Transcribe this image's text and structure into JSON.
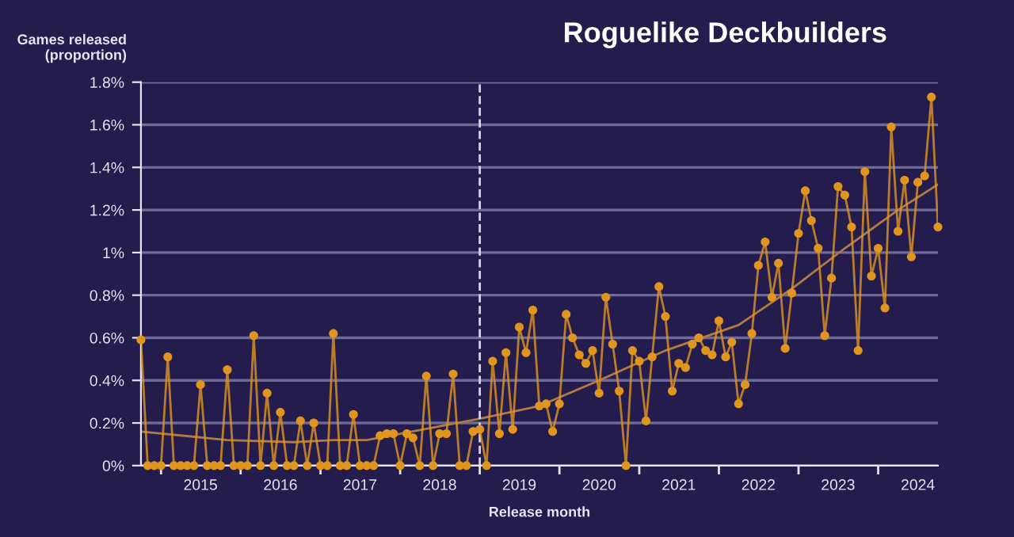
{
  "chart_data": {
    "type": "line",
    "title": "Roguelike Deckbuilders",
    "ylabel": "Games released\n(proportion)",
    "xlabel": "Release month",
    "x": [
      "2014-10",
      "2014-11",
      "2014-12",
      "2015-01",
      "2015-02",
      "2015-03",
      "2015-04",
      "2015-05",
      "2015-06",
      "2015-07",
      "2015-08",
      "2015-09",
      "2015-10",
      "2015-11",
      "2015-12",
      "2016-01",
      "2016-02",
      "2016-03",
      "2016-04",
      "2016-05",
      "2016-06",
      "2016-07",
      "2016-08",
      "2016-09",
      "2016-10",
      "2016-11",
      "2016-12",
      "2017-01",
      "2017-02",
      "2017-03",
      "2017-04",
      "2017-05",
      "2017-06",
      "2017-07",
      "2017-08",
      "2017-09",
      "2017-10",
      "2017-11",
      "2017-12",
      "2018-01",
      "2018-02",
      "2018-03",
      "2018-04",
      "2018-05",
      "2018-06",
      "2018-07",
      "2018-08",
      "2018-09",
      "2018-10",
      "2018-11",
      "2018-12",
      "2019-01",
      "2019-02",
      "2019-03",
      "2019-04",
      "2019-05",
      "2019-06",
      "2019-07",
      "2019-08",
      "2019-09",
      "2019-10",
      "2019-11",
      "2019-12",
      "2020-01",
      "2020-02",
      "2020-03",
      "2020-04",
      "2020-05",
      "2020-06",
      "2020-07",
      "2020-08",
      "2020-09",
      "2020-10",
      "2020-11",
      "2020-12",
      "2021-01",
      "2021-02",
      "2021-03",
      "2021-04",
      "2021-05",
      "2021-06",
      "2021-07",
      "2021-08",
      "2021-09",
      "2021-10",
      "2021-11",
      "2021-12",
      "2022-01",
      "2022-02",
      "2022-03",
      "2022-04",
      "2022-05",
      "2022-06",
      "2022-07",
      "2022-08",
      "2022-09",
      "2022-10",
      "2022-11",
      "2022-12",
      "2023-01",
      "2023-02",
      "2023-03",
      "2023-04",
      "2023-05",
      "2023-06",
      "2023-07",
      "2023-08",
      "2023-09",
      "2023-10",
      "2023-11",
      "2023-12",
      "2024-01",
      "2024-02",
      "2024-03",
      "2024-04",
      "2024-05",
      "2024-06",
      "2024-07",
      "2024-08",
      "2024-09",
      "2024-10"
    ],
    "series": [
      {
        "color": "#e0951f",
        "marker": "circle",
        "values": [
          0.59,
          0,
          0,
          0,
          0.51,
          0,
          0,
          0,
          0,
          0.38,
          0,
          0,
          0,
          0.45,
          0,
          0,
          0,
          0.61,
          0,
          0.34,
          0,
          0.25,
          0,
          0,
          0.21,
          0,
          0.2,
          0,
          0,
          0.62,
          0,
          0,
          0.24,
          0,
          0,
          0,
          0.14,
          0.15,
          0.15,
          0,
          0.15,
          0.13,
          0,
          0.42,
          0,
          0.15,
          0.15,
          0.43,
          0,
          0,
          0.16,
          0.17,
          0,
          0.49,
          0.15,
          0.53,
          0.17,
          0.65,
          0.53,
          0.73,
          0.28,
          0.29,
          0.16,
          0.29,
          0.71,
          0.6,
          0.52,
          0.48,
          0.54,
          0.34,
          0.79,
          0.57,
          0.35,
          0,
          0.54,
          0.49,
          0.21,
          0.51,
          0.84,
          0.7,
          0.35,
          0.48,
          0.46,
          0.57,
          0.6,
          0.54,
          0.52,
          0.68,
          0.51,
          0.58,
          0.29,
          0.38,
          0.62,
          0.94,
          1.05,
          0.79,
          0.95,
          0.55,
          0.81,
          1.09,
          1.29,
          1.15,
          1.02,
          0.61,
          0.88,
          1.31,
          1.27,
          1.12,
          0.54,
          1.38,
          0.89,
          1.02,
          0.74,
          1.59,
          1.1,
          1.34,
          0.98,
          1.33,
          1.36,
          1.73,
          1.12
        ]
      },
      {
        "color": "#b27a45",
        "marker": "none",
        "x": [
          "2014-10",
          "2015-11",
          "2016-09",
          "2017-03",
          "2017-08",
          "2018-08",
          "2019-01",
          "2019-10",
          "2020-07",
          "2021-05",
          "2022-04",
          "2022-12",
          "2023-08",
          "2024-04",
          "2024-10"
        ],
        "values": [
          0.16,
          0.12,
          0.11,
          0.12,
          0.12,
          0.19,
          0.22,
          0.28,
          0.4,
          0.54,
          0.66,
          0.83,
          1.02,
          1.2,
          1.32
        ]
      }
    ],
    "xlim": [
      "2014-10",
      "2024-10"
    ],
    "xticks": [
      {
        "value": "2015-01",
        "label": null
      },
      {
        "value": "2015-07",
        "label": "2015"
      },
      {
        "value": "2016-01",
        "label": null
      },
      {
        "value": "2016-07",
        "label": "2016"
      },
      {
        "value": "2017-01",
        "label": null
      },
      {
        "value": "2017-07",
        "label": "2017"
      },
      {
        "value": "2018-01",
        "label": null
      },
      {
        "value": "2018-07",
        "label": "2018"
      },
      {
        "value": "2019-01",
        "label": null
      },
      {
        "value": "2019-07",
        "label": "2019"
      },
      {
        "value": "2020-01",
        "label": null
      },
      {
        "value": "2020-07",
        "label": "2020"
      },
      {
        "value": "2021-01",
        "label": null
      },
      {
        "value": "2021-07",
        "label": "2021"
      },
      {
        "value": "2022-01",
        "label": null
      },
      {
        "value": "2022-07",
        "label": "2022"
      },
      {
        "value": "2023-01",
        "label": null
      },
      {
        "value": "2023-07",
        "label": "2023"
      },
      {
        "value": "2024-01",
        "label": null
      },
      {
        "value": "2024-07",
        "label": "2024"
      }
    ],
    "ylim": [
      0,
      1.8
    ],
    "yticks": [
      {
        "value": 0,
        "label": "0%"
      },
      {
        "value": 0.2,
        "label": "0.2%"
      },
      {
        "value": 0.4,
        "label": "0.4%"
      },
      {
        "value": 0.6,
        "label": "0.6%"
      },
      {
        "value": 0.8,
        "label": "0.8%"
      },
      {
        "value": 1,
        "label": "1%"
      },
      {
        "value": 1.2,
        "label": "1.2%"
      },
      {
        "value": 1.4,
        "label": "1.4%"
      },
      {
        "value": 1.6,
        "label": "1.6%"
      },
      {
        "value": 1.8,
        "label": "1.8%"
      }
    ],
    "grid": "y",
    "ref_lines": [
      {
        "axis": "x",
        "value": "2019-01",
        "color": "#d8d4ea",
        "line_style": "dashed"
      }
    ]
  }
}
